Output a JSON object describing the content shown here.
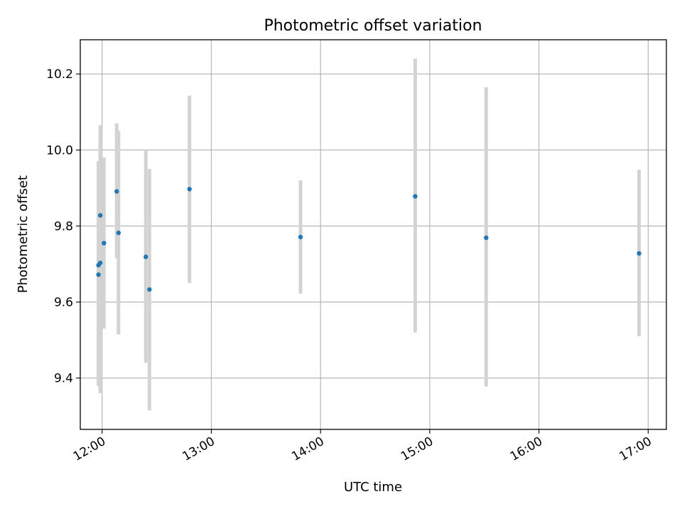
{
  "chart_data": {
    "type": "scatter",
    "title": "Photometric offset variation",
    "xlabel": "UTC time",
    "ylabel": "Photometric offset",
    "grid": true,
    "xlim": [
      "11:48",
      "17:10"
    ],
    "ylim": [
      9.265,
      10.29
    ],
    "x_ticks": [
      "12:00",
      "13:00",
      "14:00",
      "15:00",
      "16:00",
      "17:00"
    ],
    "y_ticks": [
      9.4,
      9.6,
      9.8,
      10.0,
      10.2
    ],
    "y_tick_labels": [
      "9.4",
      "9.6",
      "9.8",
      "10.0",
      "10.2"
    ],
    "marker_color": "#1f77b4",
    "errorbar_color": "#d3d3d3",
    "points": [
      {
        "x": "11:58",
        "y": 9.697,
        "low": 9.38,
        "high": 9.97
      },
      {
        "x": "11:58",
        "y": 9.672,
        "low": 9.38,
        "high": 9.97
      },
      {
        "x": "11:59",
        "y": 9.828,
        "low": 9.37,
        "high": 10.065
      },
      {
        "x": "11:59",
        "y": 9.703,
        "low": 9.36,
        "high": 10.04
      },
      {
        "x": "12:01",
        "y": 9.755,
        "low": 9.53,
        "high": 9.98
      },
      {
        "x": "12:08",
        "y": 9.891,
        "low": 9.715,
        "high": 10.07
      },
      {
        "x": "12:09",
        "y": 9.782,
        "low": 9.515,
        "high": 10.05
      },
      {
        "x": "12:24",
        "y": 9.719,
        "low": 9.44,
        "high": 10.0
      },
      {
        "x": "12:26",
        "y": 9.633,
        "low": 9.315,
        "high": 9.95
      },
      {
        "x": "12:48",
        "y": 9.897,
        "low": 9.65,
        "high": 10.143
      },
      {
        "x": "13:49",
        "y": 9.771,
        "low": 9.622,
        "high": 9.92
      },
      {
        "x": "14:52",
        "y": 9.878,
        "low": 9.52,
        "high": 10.24
      },
      {
        "x": "15:31",
        "y": 9.769,
        "low": 9.378,
        "high": 10.165
      },
      {
        "x": "16:55",
        "y": 9.728,
        "low": 9.51,
        "high": 9.948
      }
    ]
  }
}
